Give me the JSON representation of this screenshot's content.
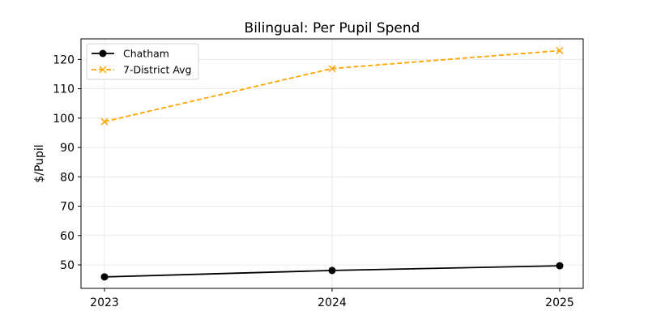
{
  "chart_data": {
    "type": "line",
    "title": "Bilingual: Per Pupil Spend",
    "xlabel": "",
    "ylabel": "$/Pupil",
    "x": [
      "2023",
      "2024",
      "2025"
    ],
    "series": [
      {
        "name": "Chatham",
        "values": [
          45.9,
          48.1,
          49.7
        ],
        "color": "#000000",
        "linestyle": "solid",
        "marker": "circle"
      },
      {
        "name": "7-District Avg",
        "values": [
          98.8,
          116.9,
          123.0
        ],
        "color": "#FFA500",
        "linestyle": "dashed",
        "marker": "x"
      }
    ],
    "yticks": [
      50,
      60,
      70,
      80,
      90,
      100,
      110,
      120
    ],
    "ylim": [
      42,
      127
    ],
    "grid": true,
    "legend_position": "upper left"
  }
}
